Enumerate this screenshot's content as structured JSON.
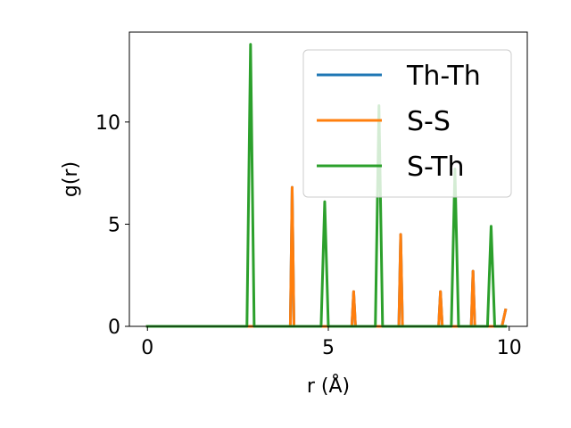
{
  "chart_data": {
    "type": "line",
    "xlabel": "r (Å)",
    "ylabel": "g(r)",
    "xlim": [
      -0.5,
      10.5
    ],
    "ylim": [
      0,
      14.4
    ],
    "xticks": [
      0,
      5,
      10
    ],
    "yticks": [
      0,
      5,
      10
    ],
    "grid": false,
    "legend_placement": "top-right",
    "series": [
      {
        "name": "Th-Th",
        "color": "#1f77b4",
        "x": [
          0,
          3.95,
          4.0,
          4.05,
          5.65,
          5.7,
          5.75,
          6.95,
          7.0,
          7.05,
          8.05,
          8.1,
          8.15,
          8.95,
          9.0,
          9.05,
          9.8,
          9.9
        ],
        "y": [
          0,
          0,
          6.8,
          0,
          0,
          1.7,
          0,
          0,
          4.5,
          0,
          0,
          1.7,
          0,
          0,
          2.7,
          0,
          0,
          0.8
        ]
      },
      {
        "name": "S-S",
        "color": "#ff7f0e",
        "x": [
          0,
          3.95,
          4.0,
          4.05,
          5.65,
          5.7,
          5.75,
          6.95,
          7.0,
          7.05,
          8.05,
          8.1,
          8.15,
          8.95,
          9.0,
          9.05,
          9.8,
          9.9
        ],
        "y": [
          0,
          0,
          6.8,
          0,
          0,
          1.7,
          0,
          0,
          4.5,
          0,
          0,
          1.7,
          0,
          0,
          2.7,
          0,
          0,
          0.8
        ]
      },
      {
        "name": "S-Th",
        "color": "#2ca02c",
        "x": [
          0,
          2.75,
          2.85,
          2.95,
          4.8,
          4.9,
          5.0,
          6.3,
          6.4,
          6.5,
          8.4,
          8.5,
          8.6,
          9.4,
          9.5,
          9.6,
          9.9
        ],
        "y": [
          0,
          0,
          13.8,
          0,
          0,
          6.1,
          0,
          0,
          10.8,
          0,
          0,
          7.7,
          0,
          0,
          4.9,
          0,
          0
        ]
      }
    ]
  }
}
